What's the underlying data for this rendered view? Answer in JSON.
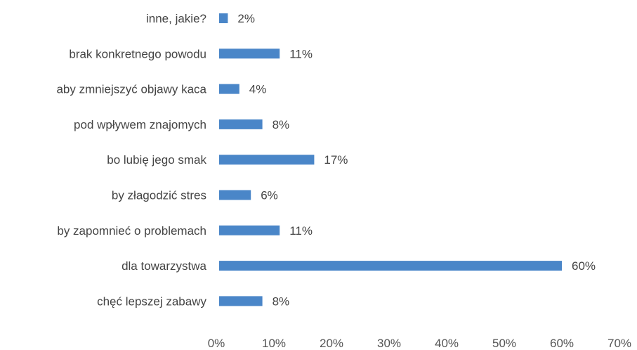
{
  "chart_data": {
    "type": "bar",
    "orientation": "horizontal",
    "categories": [
      "inne, jakie?",
      "brak konkretnego powodu",
      "aby zmniejszyć objawy kaca",
      "pod wpływem znajomych",
      "bo lubię jego smak",
      "by złagodzić stres",
      "by zapomnieć o problemach",
      "dla towarzystwa",
      "chęć lepszej zabawy"
    ],
    "values": [
      2,
      11,
      4,
      8,
      17,
      6,
      11,
      60,
      8
    ],
    "value_labels": [
      "2%",
      "11%",
      "4%",
      "8%",
      "17%",
      "6%",
      "11%",
      "60%",
      "8%"
    ],
    "xlim": [
      0,
      70
    ],
    "x_ticks": [
      "0%",
      "10%",
      "20%",
      "30%",
      "40%",
      "50%",
      "60%",
      "70%"
    ],
    "bar_color": "#4a86c8",
    "grid": false,
    "legend": "none",
    "title": "",
    "xlabel": "",
    "ylabel": ""
  }
}
